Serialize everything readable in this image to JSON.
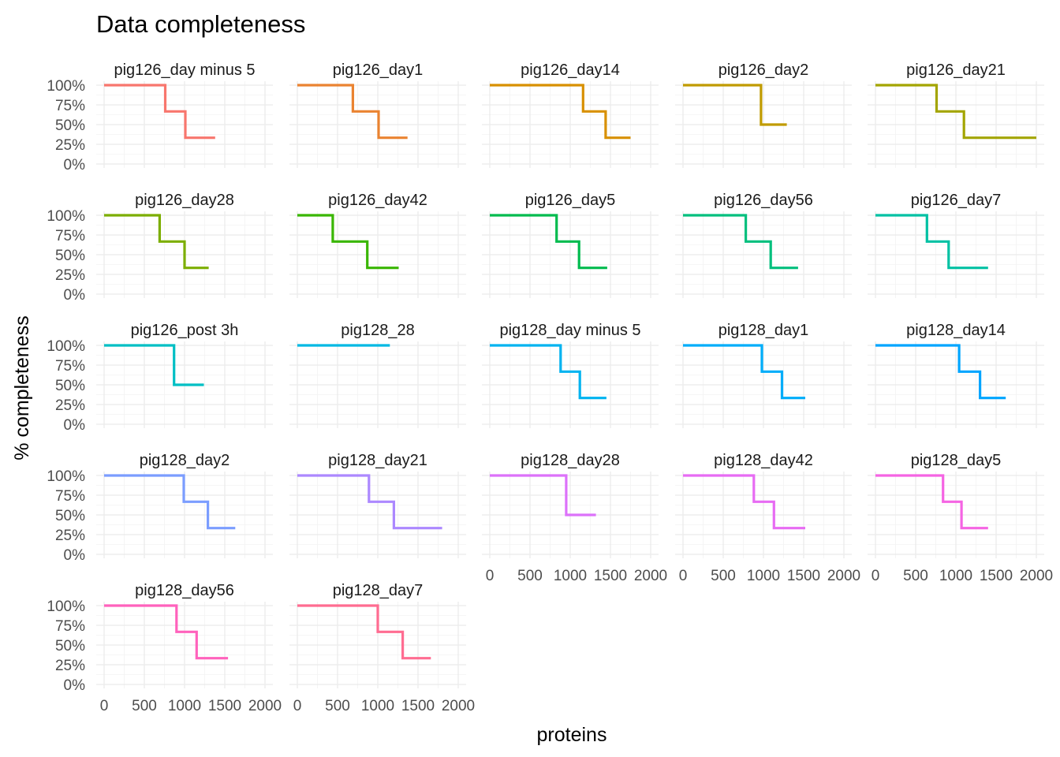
{
  "chart_data": {
    "type": "line",
    "title": "Data completeness",
    "xlabel": "proteins",
    "ylabel": "% completeness",
    "xlim": [
      0,
      2000
    ],
    "ylim": [
      0,
      100
    ],
    "x_ticks": [
      "0",
      "500",
      "1000",
      "1500",
      "2000"
    ],
    "y_ticks": [
      "0%",
      "25%",
      "50%",
      "75%",
      "100%"
    ],
    "grid": true,
    "legend": "none",
    "series": [
      {
        "name": "pig126_day minus 5",
        "color": "#F8766D",
        "steps": [
          [
            0,
            100
          ],
          [
            760,
            66.7
          ],
          [
            1010,
            33.3
          ],
          [
            1380,
            33.3
          ]
        ]
      },
      {
        "name": "pig126_day1",
        "color": "#EA8331",
        "steps": [
          [
            0,
            100
          ],
          [
            690,
            66.7
          ],
          [
            1010,
            33.3
          ],
          [
            1370,
            33.3
          ]
        ]
      },
      {
        "name": "pig126_day14",
        "color": "#D89000",
        "steps": [
          [
            0,
            100
          ],
          [
            1160,
            66.7
          ],
          [
            1440,
            33.3
          ],
          [
            1750,
            33.3
          ]
        ]
      },
      {
        "name": "pig126_day2",
        "color": "#C09B00",
        "steps": [
          [
            0,
            100
          ],
          [
            970,
            50
          ],
          [
            1290,
            50
          ]
        ]
      },
      {
        "name": "pig126_day21",
        "color": "#A3A500",
        "steps": [
          [
            0,
            100
          ],
          [
            760,
            66.7
          ],
          [
            1100,
            33.3
          ],
          [
            2000,
            33.3
          ]
        ]
      },
      {
        "name": "pig126_day28",
        "color": "#7CAE00",
        "steps": [
          [
            0,
            100
          ],
          [
            690,
            66.7
          ],
          [
            1000,
            33.3
          ],
          [
            1300,
            33.3
          ]
        ]
      },
      {
        "name": "pig126_day42",
        "color": "#39B600",
        "steps": [
          [
            0,
            100
          ],
          [
            440,
            66.7
          ],
          [
            870,
            33.3
          ],
          [
            1260,
            33.3
          ]
        ]
      },
      {
        "name": "pig126_day5",
        "color": "#00BB4E",
        "steps": [
          [
            0,
            100
          ],
          [
            830,
            66.7
          ],
          [
            1110,
            33.3
          ],
          [
            1460,
            33.3
          ]
        ]
      },
      {
        "name": "pig126_day56",
        "color": "#00BF7D",
        "steps": [
          [
            0,
            100
          ],
          [
            780,
            66.7
          ],
          [
            1090,
            33.3
          ],
          [
            1430,
            33.3
          ]
        ]
      },
      {
        "name": "pig126_day7",
        "color": "#00C1A3",
        "steps": [
          [
            0,
            100
          ],
          [
            640,
            66.7
          ],
          [
            910,
            33.3
          ],
          [
            1400,
            33.3
          ]
        ]
      },
      {
        "name": "pig126_post 3h",
        "color": "#00BFC4",
        "steps": [
          [
            0,
            100
          ],
          [
            870,
            50
          ],
          [
            1240,
            50
          ]
        ]
      },
      {
        "name": "pig128_28",
        "color": "#00B9E3",
        "steps": [
          [
            0,
            100
          ],
          [
            1150,
            100
          ]
        ]
      },
      {
        "name": "pig128_day minus 5",
        "color": "#00B3F0",
        "steps": [
          [
            0,
            100
          ],
          [
            880,
            66.7
          ],
          [
            1120,
            33.3
          ],
          [
            1450,
            33.3
          ]
        ]
      },
      {
        "name": "pig128_day1",
        "color": "#00ADFA",
        "steps": [
          [
            0,
            100
          ],
          [
            980,
            66.7
          ],
          [
            1230,
            33.3
          ],
          [
            1520,
            33.3
          ]
        ]
      },
      {
        "name": "pig128_day14",
        "color": "#00A5FF",
        "steps": [
          [
            0,
            100
          ],
          [
            1040,
            66.7
          ],
          [
            1300,
            33.3
          ],
          [
            1620,
            33.3
          ]
        ]
      },
      {
        "name": "pig128_day2",
        "color": "#7B9DFF",
        "steps": [
          [
            0,
            100
          ],
          [
            990,
            66.7
          ],
          [
            1290,
            33.3
          ],
          [
            1630,
            33.3
          ]
        ]
      },
      {
        "name": "pig128_day21",
        "color": "#AC88FF",
        "steps": [
          [
            0,
            100
          ],
          [
            890,
            66.7
          ],
          [
            1200,
            33.3
          ],
          [
            1800,
            33.3
          ]
        ]
      },
      {
        "name": "pig128_day28",
        "color": "#DC71FA",
        "steps": [
          [
            0,
            100
          ],
          [
            950,
            50
          ],
          [
            1320,
            50
          ]
        ]
      },
      {
        "name": "pig128_day42",
        "color": "#E76BF3",
        "steps": [
          [
            0,
            100
          ],
          [
            880,
            66.7
          ],
          [
            1130,
            33.3
          ],
          [
            1520,
            33.3
          ]
        ]
      },
      {
        "name": "pig128_day5",
        "color": "#F564E3",
        "steps": [
          [
            0,
            100
          ],
          [
            840,
            66.7
          ],
          [
            1070,
            33.3
          ],
          [
            1400,
            33.3
          ]
        ]
      },
      {
        "name": "pig128_day56",
        "color": "#FF62BC",
        "steps": [
          [
            0,
            100
          ],
          [
            900,
            66.7
          ],
          [
            1150,
            33.3
          ],
          [
            1540,
            33.3
          ]
        ]
      },
      {
        "name": "pig128_day7",
        "color": "#FF6C91",
        "steps": [
          [
            0,
            100
          ],
          [
            1000,
            66.7
          ],
          [
            1310,
            33.3
          ],
          [
            1660,
            33.3
          ]
        ]
      }
    ]
  }
}
